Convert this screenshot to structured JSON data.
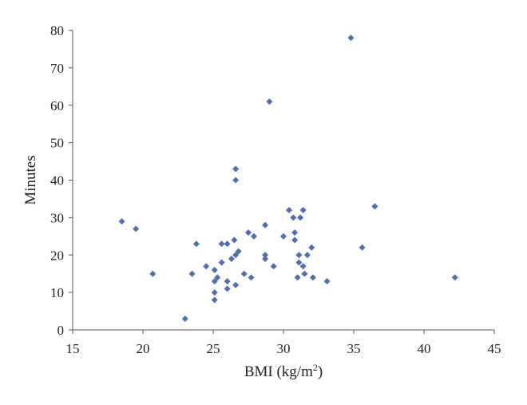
{
  "chart_data": {
    "type": "scatter",
    "title": "",
    "xlabel": "BMI (kg/m",
    "xlabel_sup": "2",
    "xlabel_close": ")",
    "ylabel": "Minutes",
    "xlim": [
      15,
      45
    ],
    "ylim": [
      0,
      80
    ],
    "xticks": [
      "15",
      "20",
      "25",
      "30",
      "35",
      "40",
      "45"
    ],
    "yticks": [
      "0",
      "10",
      "20",
      "30",
      "40",
      "50",
      "60",
      "70",
      "80"
    ],
    "grid": false,
    "legend": "none",
    "marker": "diamond",
    "color": "#4F6FB5",
    "series": [
      {
        "points": [
          [
            18.5,
            29
          ],
          [
            19.5,
            27
          ],
          [
            20.7,
            15
          ],
          [
            23.0,
            3
          ],
          [
            23.5,
            15
          ],
          [
            23.8,
            23
          ],
          [
            24.5,
            17
          ],
          [
            25.1,
            16
          ],
          [
            25.1,
            13
          ],
          [
            25.1,
            10
          ],
          [
            25.1,
            8
          ],
          [
            25.3,
            14
          ],
          [
            25.6,
            23
          ],
          [
            25.6,
            18
          ],
          [
            26.0,
            23
          ],
          [
            26.0,
            11
          ],
          [
            26.0,
            13
          ],
          [
            26.3,
            19
          ],
          [
            26.5,
            24
          ],
          [
            26.6,
            20
          ],
          [
            26.6,
            43
          ],
          [
            26.6,
            40
          ],
          [
            26.6,
            12
          ],
          [
            26.8,
            21
          ],
          [
            27.2,
            15
          ],
          [
            27.5,
            26
          ],
          [
            27.7,
            14
          ],
          [
            27.9,
            25
          ],
          [
            28.7,
            28
          ],
          [
            28.7,
            20
          ],
          [
            28.7,
            19
          ],
          [
            29.0,
            61
          ],
          [
            29.3,
            17
          ],
          [
            30.0,
            25
          ],
          [
            30.4,
            32
          ],
          [
            30.7,
            30
          ],
          [
            30.8,
            26
          ],
          [
            30.8,
            24
          ],
          [
            31.0,
            14
          ],
          [
            31.1,
            18
          ],
          [
            31.1,
            20
          ],
          [
            31.2,
            30
          ],
          [
            31.4,
            32
          ],
          [
            31.4,
            17
          ],
          [
            31.5,
            15
          ],
          [
            31.7,
            20
          ],
          [
            32.0,
            22
          ],
          [
            32.1,
            14
          ],
          [
            33.1,
            13
          ],
          [
            34.8,
            78
          ],
          [
            35.6,
            22
          ],
          [
            36.5,
            33
          ],
          [
            42.2,
            14
          ]
        ]
      }
    ]
  }
}
